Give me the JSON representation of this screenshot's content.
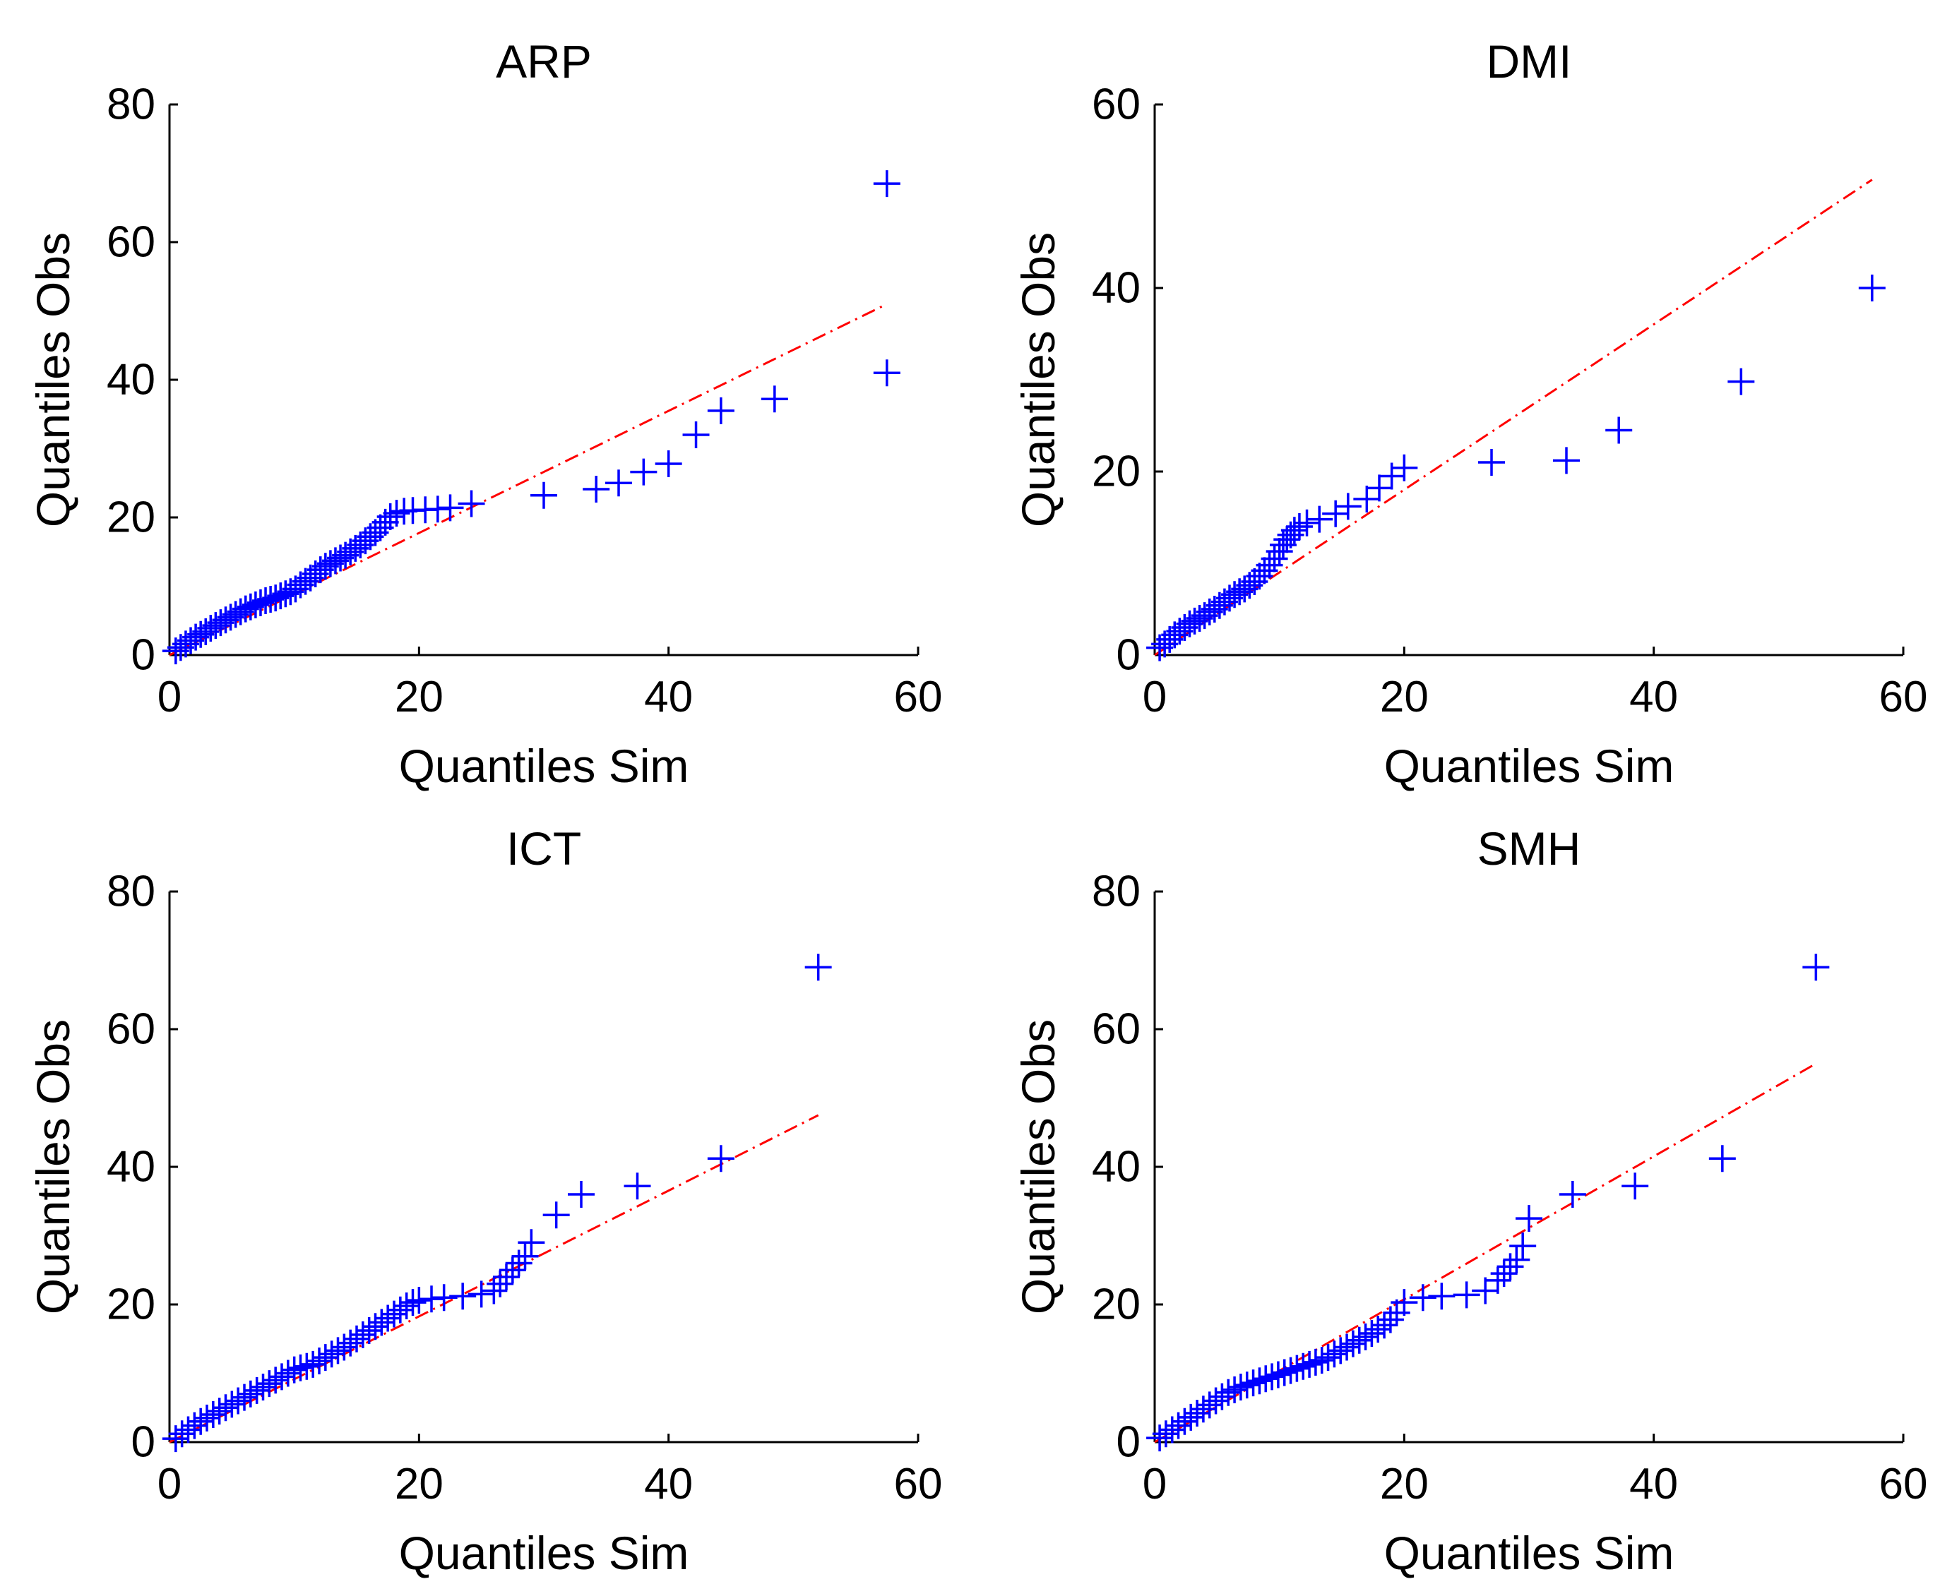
{
  "chart_data": [
    {
      "type": "scatter",
      "title": "ARP",
      "xlabel": "Quantiles Sim",
      "ylabel": "Quantiles Obs",
      "xlim": [
        0,
        60
      ],
      "ylim": [
        0,
        80
      ],
      "xticks": [
        0,
        20,
        40,
        60
      ],
      "yticks": [
        0,
        20,
        40,
        60,
        80
      ],
      "marker": "+",
      "marker_color": "#0000ff",
      "reference_line": {
        "x": [
          0,
          57.5
        ],
        "y": [
          0,
          51
        ],
        "style": "dash-dot",
        "color": "#ff0000"
      },
      "series": [
        {
          "x": [
            0.5,
            0.9,
            1.3,
            1.7,
            2.1,
            2.5,
            2.9,
            3.3,
            3.7,
            4.1,
            4.5,
            4.9,
            5.3,
            5.7,
            6.1,
            6.5,
            6.9,
            7.3,
            7.7,
            8.1,
            8.5,
            8.9,
            9.3,
            9.7,
            10.1,
            10.5,
            10.9,
            11.3,
            11.7,
            12.1,
            12.5,
            12.9,
            13.3,
            13.7,
            14.1,
            14.5,
            14.9,
            15.3,
            15.7,
            16.1,
            16.5,
            16.9,
            17.3,
            17.7,
            18.2,
            18.8,
            19.5,
            20.5,
            21.5,
            22.5,
            24.2,
            30.0,
            34.2,
            36.0,
            38.0,
            40.0,
            42.2,
            44.2,
            48.5,
            57.5,
            57.5
          ],
          "y": [
            0.6,
            1.1,
            1.6,
            2.1,
            2.6,
            3.0,
            3.4,
            3.9,
            4.3,
            4.7,
            5.1,
            5.5,
            5.9,
            6.3,
            6.7,
            7.0,
            7.3,
            7.6,
            7.9,
            8.1,
            8.3,
            8.6,
            8.9,
            9.2,
            9.6,
            10.2,
            10.7,
            11.2,
            11.8,
            12.4,
            12.9,
            13.3,
            13.7,
            14.1,
            14.5,
            15.0,
            15.5,
            16.0,
            16.6,
            17.2,
            17.8,
            18.5,
            19.3,
            20.1,
            20.6,
            20.9,
            21.0,
            21.1,
            21.2,
            21.4,
            22.0,
            23.2,
            24.1,
            25.0,
            26.6,
            27.8,
            32.0,
            35.5,
            37.2,
            41.0,
            68.5
          ]
        }
      ]
    },
    {
      "type": "scatter",
      "title": "DMI",
      "xlabel": "Quantiles Sim",
      "ylabel": "Quantiles Obs",
      "xlim": [
        0,
        60
      ],
      "ylim": [
        0,
        60
      ],
      "xticks": [
        0,
        20,
        40,
        60
      ],
      "yticks": [
        0,
        20,
        40,
        60
      ],
      "marker": "+",
      "marker_color": "#0000ff",
      "reference_line": {
        "x": [
          0,
          57.5
        ],
        "y": [
          0,
          51.8
        ],
        "style": "dash-dot",
        "color": "#ff0000"
      },
      "series": [
        {
          "x": [
            0.4,
            0.8,
            1.2,
            1.6,
            2.0,
            2.4,
            2.8,
            3.2,
            3.6,
            4.0,
            4.4,
            4.8,
            5.2,
            5.6,
            6.0,
            6.4,
            6.8,
            7.2,
            7.6,
            8.0,
            8.4,
            8.8,
            9.2,
            9.6,
            10.0,
            10.3,
            10.6,
            10.9,
            11.2,
            11.6,
            12.2,
            13.2,
            14.5,
            15.5,
            17.0,
            18.0,
            19.0,
            20.0,
            27.0,
            33.0,
            37.2,
            47.0,
            57.5
          ],
          "y": [
            0.8,
            1.2,
            1.7,
            2.2,
            2.6,
            3.0,
            3.4,
            3.7,
            4.0,
            4.3,
            4.7,
            5.0,
            5.4,
            5.8,
            6.2,
            6.6,
            6.9,
            7.2,
            7.6,
            8.0,
            8.6,
            9.2,
            9.8,
            10.5,
            11.3,
            12.0,
            12.6,
            13.1,
            13.6,
            14.0,
            14.4,
            14.8,
            15.4,
            16.2,
            17.0,
            18.2,
            19.5,
            20.4,
            21.0,
            21.2,
            24.5,
            29.8,
            40.0
          ]
        }
      ]
    },
    {
      "type": "scatter",
      "title": "ICT",
      "xlabel": "Quantiles Sim",
      "ylabel": "Quantiles Obs",
      "xlim": [
        0,
        60
      ],
      "ylim": [
        0,
        80
      ],
      "xticks": [
        0,
        20,
        40,
        60
      ],
      "yticks": [
        0,
        20,
        40,
        60,
        80
      ],
      "marker": "+",
      "marker_color": "#0000ff",
      "reference_line": {
        "x": [
          0,
          52
        ],
        "y": [
          0,
          47.5
        ],
        "style": "dash-dot",
        "color": "#ff0000"
      },
      "series": [
        {
          "x": [
            0.5,
            1.0,
            1.5,
            2.0,
            2.5,
            3.0,
            3.5,
            4.0,
            4.5,
            5.0,
            5.5,
            6.0,
            6.5,
            7.0,
            7.5,
            8.0,
            8.5,
            9.0,
            9.5,
            10.0,
            10.5,
            11.0,
            11.5,
            12.0,
            12.5,
            13.0,
            13.5,
            14.0,
            14.5,
            15.0,
            15.5,
            16.0,
            16.5,
            17.0,
            17.5,
            18.0,
            18.5,
            19.0,
            19.5,
            20.0,
            21.0,
            22.0,
            23.5,
            25.0,
            26.0,
            26.5,
            27.0,
            27.5,
            28.0,
            28.5,
            29.0,
            31.0,
            33.0,
            37.5,
            44.2,
            52.0
          ],
          "y": [
            0.5,
            1.2,
            1.8,
            2.4,
            3.0,
            3.5,
            4.0,
            4.5,
            5.0,
            5.5,
            6.0,
            6.5,
            7.0,
            7.5,
            8.0,
            8.5,
            9.0,
            9.5,
            10.0,
            10.5,
            10.8,
            11.0,
            11.3,
            11.8,
            12.3,
            12.8,
            13.3,
            13.8,
            14.4,
            15.0,
            15.6,
            16.2,
            16.8,
            17.4,
            18.0,
            18.6,
            19.2,
            19.8,
            20.3,
            20.6,
            20.8,
            21.0,
            21.2,
            21.5,
            22.0,
            23.0,
            24.0,
            25.0,
            26.0,
            27.0,
            29.0,
            33.0,
            36.0,
            37.2,
            41.2,
            69.0
          ]
        }
      ]
    },
    {
      "type": "scatter",
      "title": "SMH",
      "xlabel": "Quantiles Sim",
      "ylabel": "Quantiles Obs",
      "xlim": [
        0,
        60
      ],
      "ylim": [
        0,
        80
      ],
      "xticks": [
        0,
        20,
        40,
        60
      ],
      "yticks": [
        0,
        20,
        40,
        60,
        80
      ],
      "marker": "+",
      "marker_color": "#0000ff",
      "reference_line": {
        "x": [
          0,
          53
        ],
        "y": [
          0,
          55
        ],
        "style": "dash-dot",
        "color": "#ff0000"
      },
      "series": [
        {
          "x": [
            0.4,
            0.9,
            1.4,
            1.9,
            2.4,
            2.9,
            3.4,
            3.9,
            4.4,
            4.9,
            5.4,
            5.9,
            6.4,
            6.9,
            7.4,
            7.9,
            8.4,
            8.9,
            9.4,
            9.9,
            10.4,
            10.9,
            11.4,
            11.9,
            12.4,
            12.9,
            13.4,
            13.9,
            14.4,
            14.9,
            15.4,
            15.9,
            16.4,
            16.9,
            17.4,
            17.9,
            18.4,
            18.9,
            19.4,
            20.0,
            21.5,
            23.0,
            25.0,
            26.5,
            27.5,
            28.0,
            28.5,
            29.0,
            29.5,
            30.0,
            33.5,
            38.5,
            45.5,
            53.0
          ],
          "y": [
            0.6,
            1.2,
            1.8,
            2.4,
            3.0,
            3.6,
            4.2,
            4.8,
            5.4,
            6.0,
            6.6,
            7.2,
            7.6,
            8.0,
            8.3,
            8.6,
            8.9,
            9.2,
            9.5,
            9.8,
            10.1,
            10.4,
            10.7,
            11.0,
            11.3,
            11.6,
            11.9,
            12.3,
            12.8,
            13.3,
            13.8,
            14.3,
            14.8,
            15.3,
            15.8,
            16.4,
            17.0,
            17.8,
            18.8,
            20.3,
            21.0,
            21.2,
            21.4,
            22.0,
            23.5,
            24.5,
            25.5,
            26.5,
            28.5,
            32.5,
            36.0,
            37.2,
            41.2,
            69.0
          ]
        }
      ]
    }
  ]
}
